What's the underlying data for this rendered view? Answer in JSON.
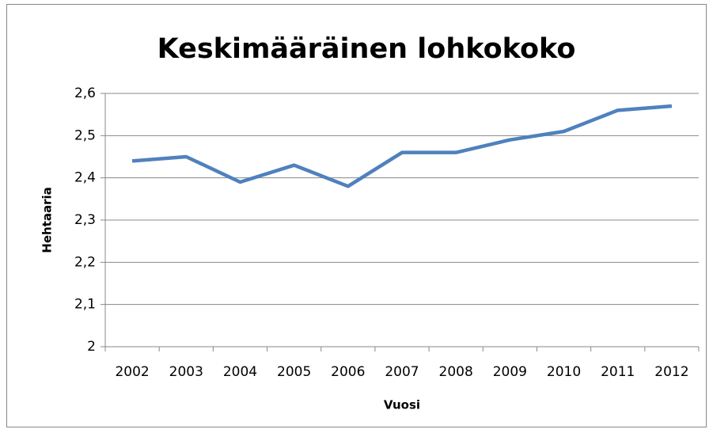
{
  "chart_data": {
    "type": "line",
    "title": "Keskimääräinen lohkokoko",
    "x_label": "Vuosi",
    "y_label": "Hehtaaria",
    "categories": [
      "2002",
      "2003",
      "2004",
      "2005",
      "2006",
      "2007",
      "2008",
      "2009",
      "2010",
      "2011",
      "2012"
    ],
    "series": [
      {
        "name": "Hehtaaria",
        "color": "#4f81bd",
        "values": [
          2.44,
          2.45,
          2.39,
          2.43,
          2.38,
          2.46,
          2.46,
          2.49,
          2.51,
          2.56,
          2.57
        ]
      }
    ],
    "ylim": [
      2,
      2.6
    ],
    "yticks": [
      2,
      {
        "value": 2.1,
        "label": "2,1"
      },
      {
        "value": 2.2,
        "label": "2,2"
      },
      {
        "value": 2.3,
        "label": "2,3"
      },
      {
        "value": 2.4,
        "label": "2,4"
      },
      {
        "value": 2.5,
        "label": "2,5"
      },
      {
        "value": 2.6,
        "label": "2,6"
      }
    ],
    "grid": true
  }
}
